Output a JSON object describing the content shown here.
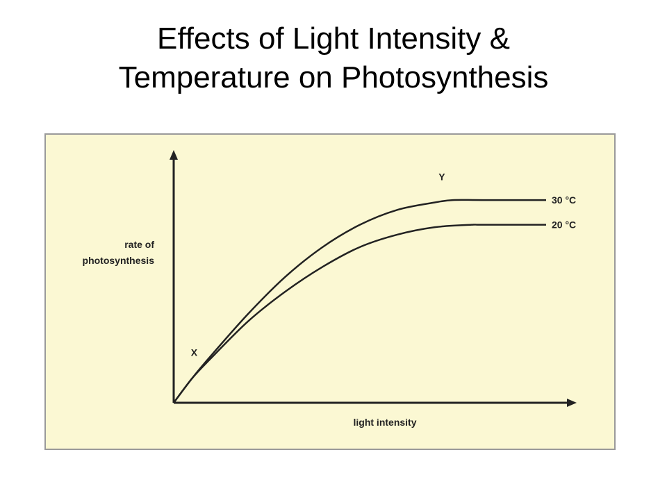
{
  "slide": {
    "title_line1": "Effects of Light Intensity &",
    "title_line2": "Temperature on Photosynthesis"
  },
  "colors": {
    "panel_background": "#fbf8d3",
    "panel_border": "#9a9a9a",
    "curve": "#222222"
  },
  "chart_data": {
    "type": "line",
    "title": "",
    "xlabel": "light intensity",
    "ylabel_line1": "rate of",
    "ylabel_line2": "photosynthesis",
    "xlim": [
      0,
      1
    ],
    "ylim": [
      0,
      1
    ],
    "ticks": false,
    "grid": false,
    "series": [
      {
        "name": "30 °C",
        "x": [
          0,
          0.05,
          0.1,
          0.2,
          0.3,
          0.4,
          0.5,
          0.6,
          0.7,
          0.75,
          0.83,
          1.0
        ],
        "values": [
          0,
          0.1,
          0.19,
          0.36,
          0.51,
          0.63,
          0.72,
          0.78,
          0.81,
          0.82,
          0.82,
          0.82
        ]
      },
      {
        "name": "20 °C",
        "x": [
          0,
          0.05,
          0.1,
          0.2,
          0.3,
          0.4,
          0.5,
          0.6,
          0.7,
          0.8,
          0.83,
          1.0
        ],
        "values": [
          0,
          0.1,
          0.18,
          0.33,
          0.45,
          0.55,
          0.63,
          0.68,
          0.71,
          0.72,
          0.72,
          0.72
        ]
      }
    ],
    "annotations": [
      {
        "text": "X",
        "x": 0.055,
        "y": 0.19
      },
      {
        "text": "Y",
        "x": 0.72,
        "y": 0.9
      }
    ]
  }
}
